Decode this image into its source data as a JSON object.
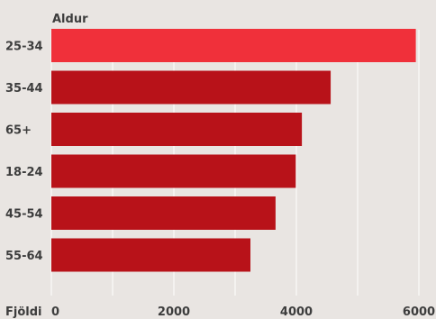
{
  "chart_data": {
    "type": "bar",
    "orientation": "horizontal",
    "ylabel": "Aldur",
    "xlabel": "Fjöldi",
    "categories": [
      "25-34",
      "35-44",
      "65+",
      "18-24",
      "45-54",
      "55-64"
    ],
    "values": [
      5950,
      4560,
      4090,
      3990,
      3660,
      3250
    ],
    "xlim": [
      0,
      6000
    ],
    "xticks": [
      0,
      1000,
      2000,
      3000,
      4000,
      5000,
      6000
    ],
    "xtick_labels": [
      "0",
      "",
      "2000",
      "",
      "4000",
      "",
      "6000"
    ],
    "grid": true,
    "colors": {
      "highlight": "#f0303a",
      "bar": "#b81219",
      "background": "#e9e5e2",
      "grid": "#ffffff",
      "text": "#3d3d3d"
    },
    "highlight_index": 0
  }
}
